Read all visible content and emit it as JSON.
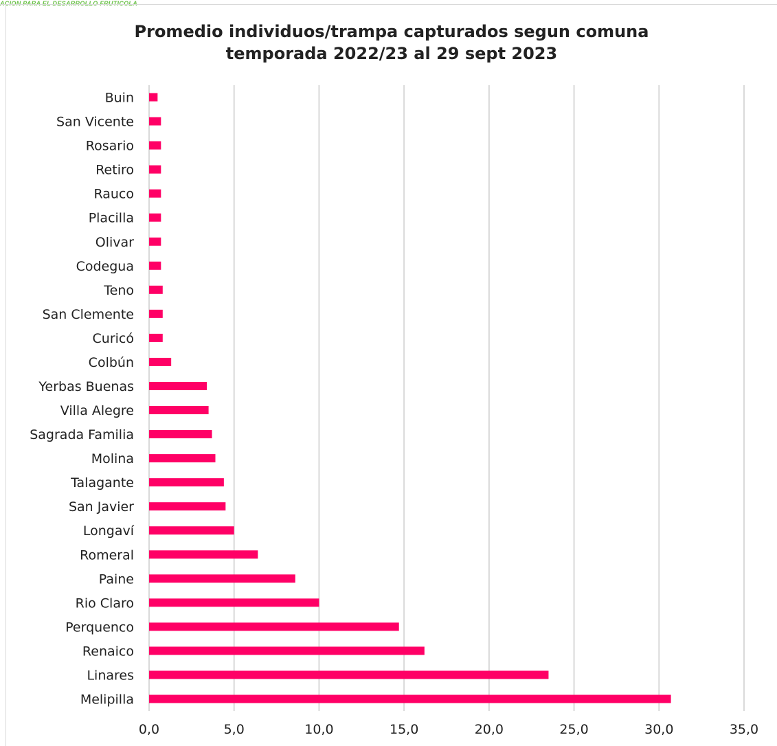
{
  "brand": {
    "header_text": "ACION PARA EL DESARROLLO FRUTICOLA",
    "accent_color": "#6cc24a"
  },
  "chart_data": {
    "type": "bar",
    "orientation": "horizontal",
    "title_line1": "Promedio individuos/trampa capturados segun comuna",
    "title_line2": "temporada 2022/23 al 29 sept 2023",
    "xlabel": "",
    "ylabel": "",
    "xlim": [
      0,
      35
    ],
    "ticks": [
      "0,0",
      "5,0",
      "10,0",
      "15,0",
      "20,0",
      "25,0",
      "30,0",
      "35,0"
    ],
    "grid": "vertical",
    "legend": "none",
    "bar_color": "#ff0066",
    "grid_color": "#d9d9d9",
    "categories": [
      "Buin",
      "San Vicente",
      "Rosario",
      "Retiro",
      "Rauco",
      "Placilla",
      "Olivar",
      "Codegua",
      "Teno",
      "San Clemente",
      "Curicó",
      "Colbún",
      "Yerbas Buenas",
      "Villa Alegre",
      "Sagrada Familia",
      "Molina",
      "Talagante",
      "San Javier",
      "Longaví",
      "Romeral",
      "Paine",
      "Rio Claro",
      "Perquenco",
      "Renaico",
      "Linares",
      "Melipilla"
    ],
    "values": [
      0.5,
      0.7,
      0.7,
      0.7,
      0.7,
      0.7,
      0.7,
      0.7,
      0.8,
      0.8,
      0.8,
      1.3,
      3.4,
      3.5,
      3.7,
      3.9,
      4.4,
      4.5,
      5.0,
      6.4,
      8.6,
      10.0,
      14.7,
      16.2,
      23.5,
      30.7
    ]
  }
}
